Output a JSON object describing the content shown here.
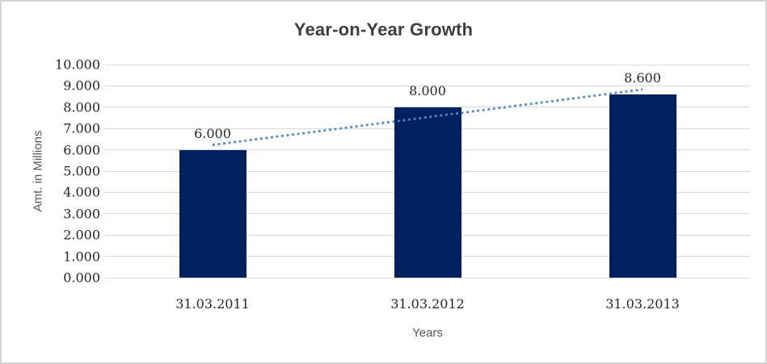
{
  "frame": {
    "background": "#ffffff",
    "border_color": "#d3d3d3"
  },
  "chart_data": {
    "type": "bar",
    "title": "Year-on-Year Growth",
    "categories": [
      "31.03.2011",
      "31.03.2012",
      "31.03.2013"
    ],
    "values": [
      6.0,
      8.0,
      8.6
    ],
    "data_labels": [
      "6.000",
      "8.000",
      "8.600"
    ],
    "xlabel": "Years",
    "ylabel": "Amt. in Millions",
    "ylim": [
      0,
      10
    ],
    "ytick_step": 1,
    "ytick_labels": [
      "0.000",
      "1.000",
      "2.000",
      "3.000",
      "4.000",
      "5.000",
      "6.000",
      "7.000",
      "8.000",
      "9.000",
      "10.000"
    ],
    "grid": true,
    "legend": "none",
    "trendline": {
      "type": "linear",
      "style": "dotted",
      "color": "#4a86c8",
      "endpoint_values": [
        6.23,
        8.83
      ]
    },
    "colors": {
      "bar": "#002060",
      "gridline": "#d9d9d9",
      "title_text": "#3f3f3f",
      "tick_text": "#262626",
      "axis_title_text": "#595959"
    }
  }
}
